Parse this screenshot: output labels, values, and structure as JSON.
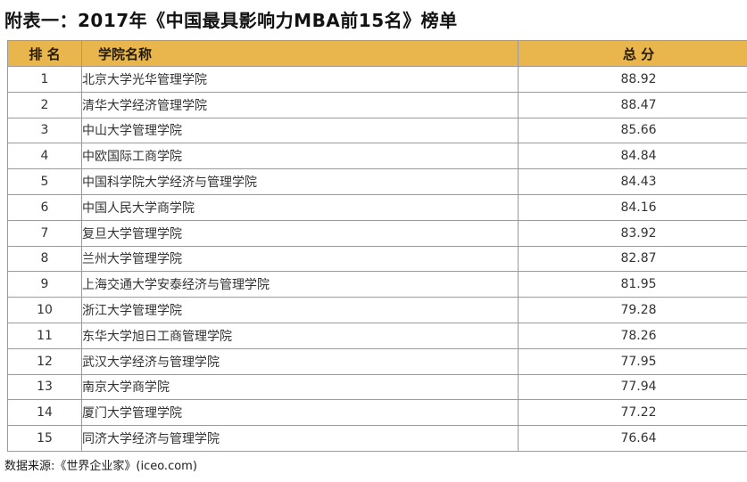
{
  "page": {
    "title": "附表一：2017年《中国最具影响力MBA前15名》榜单",
    "source_note": "数据来源:《世界企业家》(iceo.com)"
  },
  "colors": {
    "header_background": "#e9b64d",
    "header_text": "#241a00",
    "table_border": "#9b9b9b",
    "body_text": "#333333",
    "title_text": "#121212"
  },
  "table": {
    "headers": {
      "rank": "排 名",
      "school": "学院名称",
      "score": "总 分"
    },
    "rows": [
      {
        "rank": "1",
        "school": "北京大学光华管理学院",
        "score": "88.92"
      },
      {
        "rank": "2",
        "school": "清华大学经济管理学院",
        "score": "88.47"
      },
      {
        "rank": "3",
        "school": "中山大学管理学院",
        "score": "85.66"
      },
      {
        "rank": "4",
        "school": "中欧国际工商学院",
        "score": "84.84"
      },
      {
        "rank": "5",
        "school": "中国科学院大学经济与管理学院",
        "score": "84.43"
      },
      {
        "rank": "6",
        "school": "中国人民大学商学院",
        "score": "84.16"
      },
      {
        "rank": "7",
        "school": "复旦大学管理学院",
        "score": "83.92"
      },
      {
        "rank": "8",
        "school": "兰州大学管理学院",
        "score": "82.87"
      },
      {
        "rank": "9",
        "school": "上海交通大学安泰经济与管理学院",
        "score": "81.95"
      },
      {
        "rank": "10",
        "school": "浙江大学管理学院",
        "score": "79.28"
      },
      {
        "rank": "11",
        "school": "东华大学旭日工商管理学院",
        "score": "78.26"
      },
      {
        "rank": "12",
        "school": "武汉大学经济与管理学院",
        "score": "77.95"
      },
      {
        "rank": "13",
        "school": "南京大学商学院",
        "score": "77.94"
      },
      {
        "rank": "14",
        "school": "厦门大学管理学院",
        "score": "77.22"
      },
      {
        "rank": "15",
        "school": "同济大学经济与管理学院",
        "score": "76.64"
      }
    ]
  }
}
